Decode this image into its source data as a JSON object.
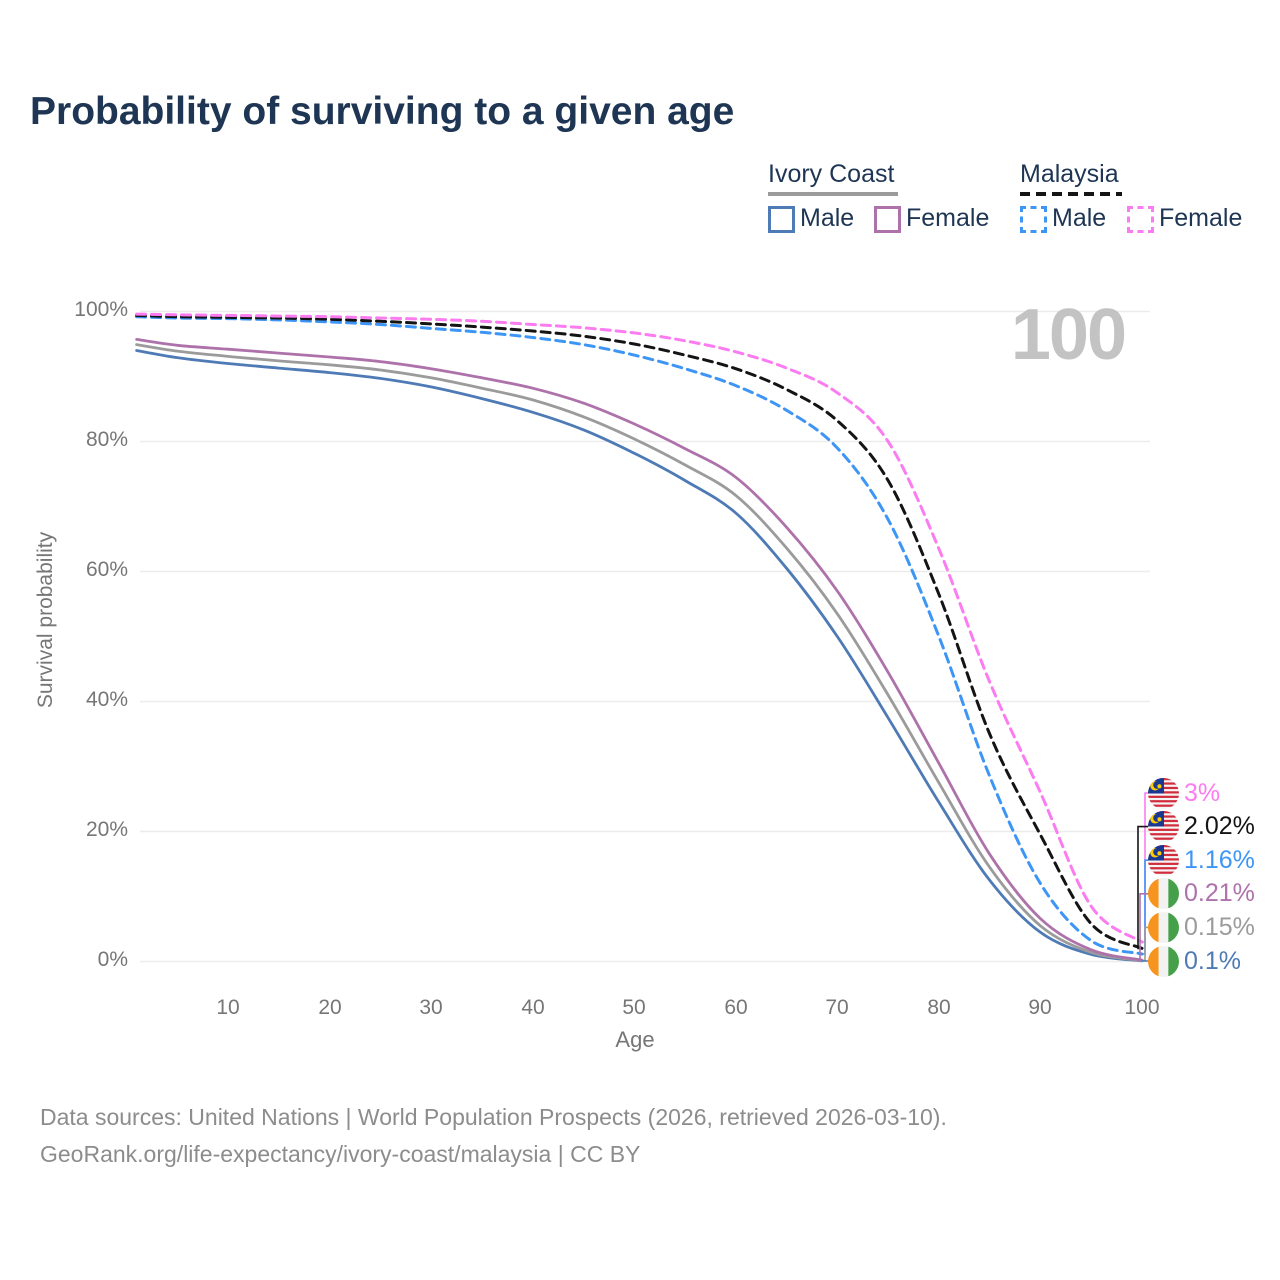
{
  "title": "Probability of surviving to a given age",
  "watermark_age": "100",
  "legend": {
    "ivory_coast": {
      "label": "Ivory Coast",
      "male": "Male",
      "female": "Female"
    },
    "malaysia": {
      "label": "Malaysia",
      "male": "Male",
      "female": "Female"
    }
  },
  "axes": {
    "y_title": "Survival probability",
    "y_ticks": [
      "100%",
      "80%",
      "60%",
      "40%",
      "20%",
      "0%"
    ],
    "x_title": "Age",
    "x_ticks": [
      "10",
      "20",
      "30",
      "40",
      "50",
      "60",
      "70",
      "80",
      "90",
      "100"
    ]
  },
  "end_labels": [
    {
      "label": "3%",
      "value_percent": 3.0,
      "country": "malaysia",
      "series": "Malaysia Female",
      "color": "#fb7cf0",
      "corner_x": 1145
    },
    {
      "label": "2.02%",
      "value_percent": 2.02,
      "country": "malaysia",
      "series": "Malaysia Combined",
      "color": "#141414",
      "corner_x": 1138
    },
    {
      "label": "1.16%",
      "value_percent": 1.16,
      "country": "malaysia",
      "series": "Malaysia Male",
      "color": "#3d95f5",
      "corner_x": 1145
    },
    {
      "label": "0.21%",
      "value_percent": 0.21,
      "country": "ivory-coast",
      "series": "Ivory Coast Female",
      "color": "#ae72ab",
      "corner_x": 1140
    },
    {
      "label": "0.15%",
      "value_percent": 0.15,
      "country": "ivory-coast",
      "series": "Ivory Coast Combined",
      "color": "#9b9b9b",
      "corner_x": 1145
    },
    {
      "label": "0.1%",
      "value_percent": 0.1,
      "country": "ivory-coast",
      "series": "Ivory Coast Male",
      "color": "#4e7ab5",
      "corner_x": 1145
    }
  ],
  "footer": {
    "line1": "Data sources: United Nations | World Population Prospects (2026, retrieved 2026-03-10).",
    "line2": "GeoRank.org/life-expectancy/ivory-coast/malaysia | CC BY"
  },
  "chart_data": {
    "type": "line",
    "title": "Probability of surviving to a given age",
    "xlabel": "Age",
    "ylabel": "Survival probability",
    "x_range": [
      1,
      100
    ],
    "y_range_percent": [
      0,
      100
    ],
    "grid": "horizontal",
    "legend_position": "top-right",
    "ages": [
      1,
      5,
      10,
      15,
      20,
      25,
      30,
      35,
      40,
      45,
      50,
      55,
      60,
      65,
      70,
      75,
      80,
      85,
      90,
      95,
      100
    ],
    "series": [
      {
        "name": "Ivory Coast Male",
        "country": "ivory-coast",
        "sex": "male",
        "style": "solid",
        "color": "#4e7ab5",
        "values": [
          94.0,
          92.9,
          92.0,
          91.3,
          90.6,
          89.7,
          88.4,
          86.6,
          84.5,
          81.8,
          78.2,
          74.0,
          69.0,
          60.5,
          50.0,
          37.5,
          24.5,
          12.5,
          4.5,
          1.1,
          0.1
        ]
      },
      {
        "name": "Ivory Coast Combined",
        "country": "ivory-coast",
        "sex": "combined",
        "style": "solid",
        "color": "#9b9b9b",
        "values": [
          94.9,
          93.9,
          93.1,
          92.4,
          91.8,
          91.0,
          89.8,
          88.2,
          86.4,
          83.8,
          80.4,
          76.4,
          71.7,
          63.6,
          53.5,
          41.0,
          27.5,
          14.5,
          5.5,
          1.4,
          0.15
        ]
      },
      {
        "name": "Ivory Coast Female",
        "country": "ivory-coast",
        "sex": "female",
        "style": "solid",
        "color": "#ae72ab",
        "values": [
          95.7,
          94.8,
          94.2,
          93.6,
          93.0,
          92.3,
          91.2,
          89.8,
          88.2,
          85.9,
          82.7,
          78.9,
          74.5,
          66.8,
          57.0,
          44.5,
          30.5,
          16.5,
          6.6,
          1.8,
          0.21
        ]
      },
      {
        "name": "Malaysia Male",
        "country": "malaysia",
        "sex": "male",
        "style": "dashed",
        "color": "#3d95f5",
        "values": [
          99.2,
          99.0,
          98.9,
          98.7,
          98.4,
          98.0,
          97.4,
          96.8,
          96.0,
          94.9,
          93.3,
          91.2,
          88.6,
          84.8,
          79.0,
          68.0,
          50.0,
          28.5,
          12.0,
          3.2,
          1.16
        ]
      },
      {
        "name": "Malaysia Combined",
        "country": "malaysia",
        "sex": "combined",
        "style": "dashed",
        "color": "#141414",
        "values": [
          99.4,
          99.2,
          99.1,
          99.0,
          98.8,
          98.5,
          98.1,
          97.6,
          97.0,
          96.2,
          95.0,
          93.3,
          91.2,
          88.0,
          83.2,
          74.0,
          56.5,
          35.0,
          19.5,
          5.8,
          2.02
        ]
      },
      {
        "name": "Malaysia Female",
        "country": "malaysia",
        "sex": "female",
        "style": "dashed",
        "color": "#fb7cf0",
        "values": [
          99.6,
          99.5,
          99.4,
          99.3,
          99.2,
          99.0,
          98.8,
          98.5,
          98.0,
          97.5,
          96.7,
          95.5,
          93.8,
          91.3,
          87.5,
          80.0,
          63.5,
          43.0,
          26.0,
          8.5,
          3.0
        ]
      }
    ]
  }
}
